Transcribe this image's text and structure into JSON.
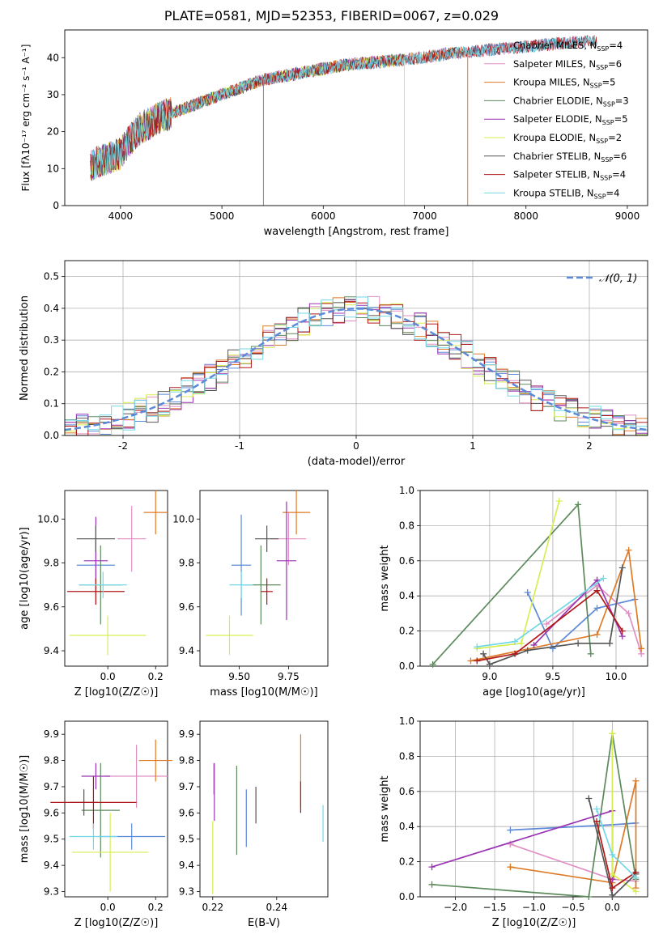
{
  "figure": {
    "title": "PLATE=0581, MJD=52353, FIBERID=0067, z=0.029"
  },
  "series_styles": [
    {
      "name": "Chabrier MILES",
      "nssp": 4,
      "color": "#5d8ad8"
    },
    {
      "name": "Salpeter MILES",
      "nssp": 6,
      "color": "#e08fc4"
    },
    {
      "name": "Kroupa MILES",
      "nssp": 5,
      "color": "#de7a26"
    },
    {
      "name": "Chabrier ELODIE",
      "nssp": 3,
      "color": "#5c8a5c"
    },
    {
      "name": "Salpeter ELODIE",
      "nssp": 5,
      "color": "#9b34b4"
    },
    {
      "name": "Kroupa ELODIE",
      "nssp": 2,
      "color": "#d7ee52"
    },
    {
      "name": "Chabrier STELIB",
      "nssp": 6,
      "color": "#555555"
    },
    {
      "name": "Salpeter STELIB",
      "nssp": 4,
      "color": "#b01818"
    },
    {
      "name": "Kroupa STELIB",
      "nssp": 4,
      "color": "#72d8e6"
    }
  ],
  "chart_data": [
    {
      "type": "line",
      "id": "spectrum",
      "xlabel": "wavelength [Angstrom, rest frame]",
      "ylabel": "Flux [f_λ 10^-17 erg cm^-2 s^-1 A^-1]",
      "xlim": [
        3450,
        9200
      ],
      "ylim": [
        0,
        47.5
      ],
      "xticks": [
        4000,
        5000,
        6000,
        7000,
        8000,
        9000
      ],
      "yticks": [
        0,
        10,
        20,
        30,
        40
      ],
      "grid": false,
      "legend": "top-right",
      "legend_suffix": "N_SSP=",
      "continuum": {
        "x": [
          3700,
          3800,
          3900,
          4000,
          4100,
          4200,
          4400,
          4600,
          4800,
          5000,
          5200,
          5400,
          5600,
          5800,
          6000,
          6200,
          6400,
          6600,
          6800,
          7000,
          7200,
          7400,
          7600,
          7800,
          8000,
          8200,
          8400,
          8600,
          8800,
          9000
        ],
        "y": [
          11,
          12,
          13,
          14,
          18,
          21,
          24,
          26,
          28,
          30,
          32,
          34,
          35,
          36,
          37,
          38,
          38.5,
          39,
          39.5,
          40,
          41,
          41.5,
          42,
          42.5,
          43,
          43.5,
          44,
          44.5,
          45,
          45.5
        ]
      },
      "series_range": [
        {
          "name": "Chabrier MILES",
          "x0": 3700,
          "x1": 8600
        },
        {
          "name": "Salpeter MILES",
          "x0": 3700,
          "x1": 8600
        },
        {
          "name": "Kroupa MILES",
          "x0": 3700,
          "x1": 7420
        },
        {
          "name": "Chabrier ELODIE",
          "x0": 3700,
          "x1": 6800
        },
        {
          "name": "Salpeter ELODIE",
          "x0": 3700,
          "x1": 6800
        },
        {
          "name": "Kroupa ELODIE",
          "x0": 3700,
          "x1": 6800
        },
        {
          "name": "Chabrier STELIB",
          "x0": 3700,
          "x1": 8700
        },
        {
          "name": "Salpeter STELIB",
          "x0": 3700,
          "x1": 8700
        },
        {
          "name": "Kroupa STELIB",
          "x0": 3700,
          "x1": 8700
        }
      ]
    },
    {
      "type": "bar",
      "id": "residual-histogram",
      "xlabel": "(data-model)/error",
      "ylabel": "Normed distribution",
      "xlim": [
        -2.5,
        2.5
      ],
      "ylim": [
        0,
        0.55
      ],
      "xticks": [
        -2,
        -1,
        0,
        1,
        2
      ],
      "yticks": [
        0.0,
        0.1,
        0.2,
        0.3,
        0.4,
        0.5
      ],
      "grid": true,
      "legend": "top-right",
      "legend_entry": "𝒩(0, 1)",
      "bin_edges_step": 0.1,
      "gaussian": {
        "mean": 0,
        "sigma": 1,
        "color": "#5d8ad8"
      }
    },
    {
      "type": "scatter",
      "id": "age-vs-z",
      "xlabel": "Z [log10(Z/Z☉)]",
      "ylabel": "age [log10(age/yr)]",
      "xlim": [
        -0.18,
        0.25
      ],
      "ylim": [
        9.33,
        10.13
      ],
      "xticks": [
        -0.0,
        0.2
      ],
      "yticks": [
        9.4,
        9.6,
        9.8,
        10.0
      ],
      "xticklabels": [
        "0.0",
        "0.2"
      ],
      "points": [
        {
          "x": -0.05,
          "y": 9.79,
          "xerr": 0.08,
          "yerr": 0.11
        },
        {
          "x": 0.1,
          "y": 9.91,
          "xerr": 0.06,
          "yerr": 0.15
        },
        {
          "x": 0.2,
          "y": 10.03,
          "xerr": 0.05,
          "yerr": 0.1
        },
        {
          "x": -0.03,
          "y": 9.7,
          "xerr": 0.09,
          "yerr": 0.18
        },
        {
          "x": -0.05,
          "y": 9.81,
          "xerr": 0.05,
          "yerr": 0.2
        },
        {
          "x": 0.0,
          "y": 9.47,
          "xerr": 0.16,
          "yerr": 0.09
        },
        {
          "x": -0.05,
          "y": 9.91,
          "xerr": 0.08,
          "yerr": 0.06
        },
        {
          "x": -0.05,
          "y": 9.67,
          "xerr": 0.12,
          "yerr": 0.06
        },
        {
          "x": -0.02,
          "y": 9.7,
          "xerr": 0.1,
          "yerr": 0.06
        }
      ]
    },
    {
      "type": "scatter",
      "id": "age-vs-mass",
      "xlabel": "mass [log10(M/M☉)]",
      "ylabel": "",
      "xlim": [
        9.3,
        9.95
      ],
      "ylim": [
        9.33,
        10.13
      ],
      "xticks": [
        9.5,
        9.75
      ],
      "yticks": [
        9.4,
        9.6,
        9.8,
        10.0
      ],
      "xticklabels": [
        "9.50",
        "9.75"
      ],
      "points": [
        {
          "x": 9.51,
          "y": 9.79,
          "xerr": 0.05,
          "yerr": 0.23
        },
        {
          "x": 9.75,
          "y": 9.91,
          "xerr": 0.09,
          "yerr": 0.12
        },
        {
          "x": 9.79,
          "y": 10.03,
          "xerr": 0.07,
          "yerr": 0.1
        },
        {
          "x": 9.61,
          "y": 9.7,
          "xerr": 0.1,
          "yerr": 0.18
        },
        {
          "x": 9.74,
          "y": 9.81,
          "xerr": 0.05,
          "yerr": 0.27
        },
        {
          "x": 9.45,
          "y": 9.47,
          "xerr": 0.12,
          "yerr": 0.09
        },
        {
          "x": 9.64,
          "y": 9.91,
          "xerr": 0.06,
          "yerr": 0.06
        },
        {
          "x": 9.64,
          "y": 9.67,
          "xerr": 0.03,
          "yerr": 0.06
        },
        {
          "x": 9.51,
          "y": 9.7,
          "xerr": 0.06,
          "yerr": 0.06
        }
      ]
    },
    {
      "type": "line",
      "id": "mass-weight-vs-age",
      "xlabel": "age [log10(age/yr)]",
      "ylabel": "mass weight",
      "xlim": [
        8.45,
        10.25
      ],
      "ylim": [
        0.0,
        1.0
      ],
      "xticks": [
        9.0,
        9.5,
        10.0
      ],
      "yticks": [
        0.0,
        0.2,
        0.4,
        0.6,
        0.8,
        1.0
      ],
      "xticklabels": [
        "9.0",
        "9.5",
        "10.0"
      ],
      "grid": true,
      "lines": [
        {
          "x": [
            9.3,
            9.5,
            9.85,
            10.15
          ],
          "y": [
            0.42,
            0.1,
            0.33,
            0.38
          ]
        },
        {
          "x": [
            9.45,
            9.85,
            10.1,
            10.2
          ],
          "y": [
            0.24,
            0.46,
            0.3,
            0.07
          ]
        },
        {
          "x": [
            8.85,
            9.85,
            10.1,
            10.2
          ],
          "y": [
            0.03,
            0.18,
            0.66,
            0.1
          ]
        },
        {
          "x": 8.55,
          "y": 0.01,
          "seq": [
            [
              8.55,
              0.01
            ],
            [
              9.7,
              0.92
            ],
            [
              9.8,
              0.07
            ]
          ]
        },
        {
          "x": [
            9.35,
            9.85,
            10.05
          ],
          "y": [
            0.12,
            0.49,
            0.17
          ]
        },
        {
          "x": [
            8.9,
            9.25,
            9.55
          ],
          "y": [
            0.1,
            0.13,
            0.94
          ]
        },
        {
          "x": [
            8.95,
            9.0,
            9.3,
            9.7,
            9.95,
            10.05
          ],
          "y": [
            0.07,
            0.01,
            0.09,
            0.13,
            0.13,
            0.56
          ]
        },
        {
          "x": [
            8.9,
            9.2,
            9.85,
            10.05
          ],
          "y": [
            0.03,
            0.07,
            0.43,
            0.2
          ]
        },
        {
          "x": [
            8.9,
            9.2,
            9.9
          ],
          "y": [
            0.11,
            0.14,
            0.5
          ]
        }
      ]
    },
    {
      "type": "scatter",
      "id": "mass-vs-z",
      "xlabel": "Z [log10(Z/Z☉)]",
      "ylabel": "mass [log10(M/M☉)]",
      "xlim": [
        -0.18,
        0.25
      ],
      "ylim": [
        9.28,
        9.95
      ],
      "xticks": [
        -0.0,
        0.2
      ],
      "yticks": [
        9.3,
        9.4,
        9.5,
        9.6,
        9.7,
        9.8,
        9.9
      ],
      "xticklabels": [
        "0.0",
        "0.2"
      ],
      "points": [
        {
          "x": 0.1,
          "y": 9.51,
          "xerr": 0.14,
          "yerr": 0.05
        },
        {
          "x": 0.12,
          "y": 9.74,
          "xerr": 0.13,
          "yerr": 0.12
        },
        {
          "x": 0.2,
          "y": 9.8,
          "xerr": 0.07,
          "yerr": 0.08
        },
        {
          "x": -0.03,
          "y": 9.61,
          "xerr": 0.08,
          "yerr": 0.18
        },
        {
          "x": -0.05,
          "y": 9.74,
          "xerr": 0.06,
          "yerr": 0.05
        },
        {
          "x": 0.01,
          "y": 9.45,
          "xerr": 0.16,
          "yerr": 0.15
        },
        {
          "x": -0.1,
          "y": 9.64,
          "xerr": 0.06,
          "yerr": 0.05
        },
        {
          "x": -0.06,
          "y": 9.64,
          "xerr": 0.18,
          "yerr": 0.1
        },
        {
          "x": -0.06,
          "y": 9.51,
          "xerr": 0.1,
          "yerr": 0.05
        }
      ]
    },
    {
      "type": "scatter",
      "id": "mass-vs-ebv",
      "xlabel": "E(B-V)",
      "ylabel": "",
      "xlim": [
        0.216,
        0.256
      ],
      "ylim": [
        9.28,
        9.95
      ],
      "xticks": [
        0.22,
        0.24
      ],
      "yticks": [
        9.3,
        9.4,
        9.5,
        9.6,
        9.7,
        9.8,
        9.9
      ],
      "xticklabels": [
        "0.22",
        "0.24"
      ],
      "points": [
        {
          "x": 0.2305,
          "y": 9.58,
          "xerr": 0,
          "yerr": 0.11
        },
        {
          "x": 0.2203,
          "y": 9.73,
          "xerr": 0,
          "yerr": 0.06
        },
        {
          "x": 0.2475,
          "y": 9.76,
          "xerr": 0,
          "yerr": 0.14
        },
        {
          "x": 0.2275,
          "y": 9.61,
          "xerr": 0,
          "yerr": 0.17
        },
        {
          "x": 0.2205,
          "y": 9.68,
          "xerr": 0,
          "yerr": 0.11
        },
        {
          "x": 0.22,
          "y": 9.43,
          "xerr": 0,
          "yerr": 0.14
        },
        {
          "x": 0.2335,
          "y": 9.63,
          "xerr": 0,
          "yerr": 0.07
        },
        {
          "x": 0.2475,
          "y": 9.66,
          "xerr": 0,
          "yerr": 0.06
        },
        {
          "x": 0.2545,
          "y": 9.56,
          "xerr": 0,
          "yerr": 0.07
        }
      ]
    },
    {
      "type": "line",
      "id": "mass-weight-vs-z",
      "xlabel": "Z [log10(Z/Z☉)]",
      "ylabel": "mass weight",
      "xlim": [
        -2.45,
        0.45
      ],
      "ylim": [
        0.0,
        1.0
      ],
      "xticks": [
        -2.0,
        -1.5,
        -1.0,
        -0.5,
        0.0
      ],
      "yticks": [
        0.0,
        0.2,
        0.4,
        0.6,
        0.8,
        1.0
      ],
      "xticklabels": [
        "−2.0",
        "−1.5",
        "−1.0",
        "−0.5",
        "0.0"
      ],
      "grid": true,
      "lines": [
        {
          "x": [
            -1.3,
            0.0,
            0.3
          ],
          "y": [
            0.38,
            0.41,
            0.42
          ]
        },
        {
          "x": [
            -1.3,
            -1.3,
            0.0,
            0.3
          ],
          "y": [
            0.3,
            0.3,
            0.1,
            0.09
          ]
        },
        {
          "x": [
            -1.3,
            -1.3,
            0.0,
            0.3,
            0.3
          ],
          "y": [
            0.17,
            0.17,
            0.08,
            0.66,
            0.05
          ]
        },
        {
          "x": [
            -2.3,
            -0.3,
            0.0,
            0.3
          ],
          "y": [
            0.07,
            0.0,
            0.93,
            0.1
          ]
        },
        {
          "x": [
            -2.3,
            0.0,
            0.0
          ],
          "y": [
            0.17,
            0.49,
            0.1
          ]
        },
        {
          "x": [
            0.0,
            0.0,
            0.3
          ],
          "y": [
            0.93,
            0.13,
            0.03
          ]
        },
        {
          "x": [
            -0.3,
            0.0,
            0.0,
            0.3
          ],
          "y": [
            0.56,
            0.01,
            0.0,
            0.13
          ]
        },
        {
          "x": [
            -0.2,
            0.0,
            0.3
          ],
          "y": [
            0.43,
            0.05,
            0.14
          ]
        },
        {
          "x": [
            -0.2,
            0.0,
            0.3
          ],
          "y": [
            0.5,
            0.24,
            0.11
          ]
        }
      ]
    }
  ]
}
